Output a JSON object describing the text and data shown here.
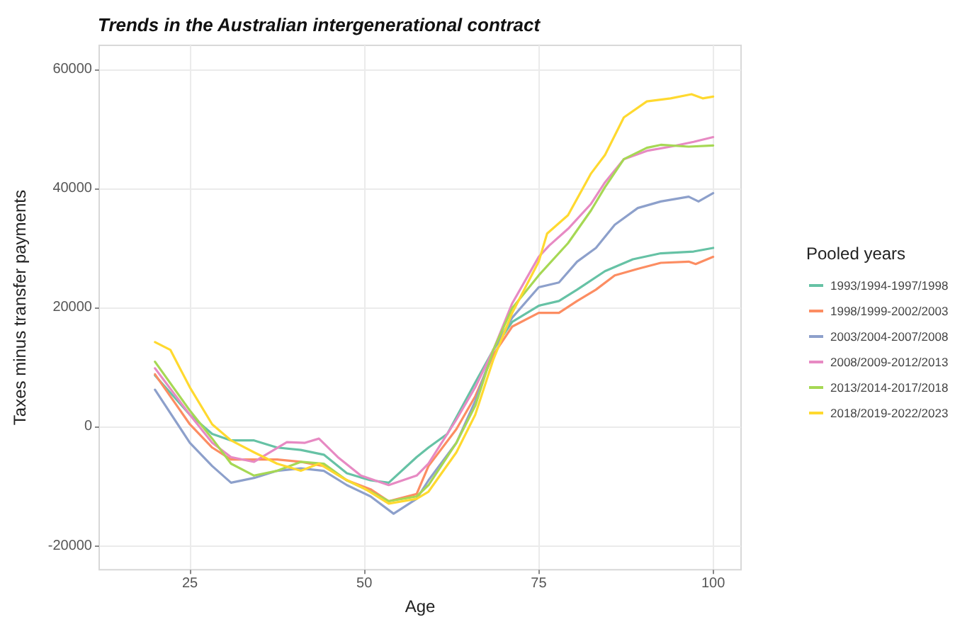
{
  "chart_data": {
    "type": "line",
    "title": "Trends in the Australian intergenerational contract",
    "xlabel": "Age",
    "ylabel": "Taxes minus transfer payments",
    "legend_title": "Pooled years",
    "xlim": [
      12,
      104
    ],
    "xticks": [
      25,
      50,
      75,
      100
    ],
    "ylim": [
      -24000,
      64000
    ],
    "yticks": [
      -20000,
      0,
      20000,
      40000,
      60000
    ],
    "grid": true,
    "legend": "right",
    "marker": "none",
    "line_style": "solid",
    "series": [
      {
        "name": "1993/1994-1997/1998",
        "color": "#66c2a5",
        "x": [
          20,
          25,
          28.2,
          30.9,
          34.2,
          37.5,
          40.9,
          44.2,
          47.5,
          50.9,
          53.5,
          57.5,
          59.2,
          61.9,
          65.9,
          68.5,
          71.2,
          75,
          77.9,
          80.5,
          84.5,
          88.5,
          92.5,
          97.2,
          100
        ],
        "values": [
          8600,
          2000,
          -1200,
          -2300,
          -2300,
          -3500,
          -3900,
          -4700,
          -7800,
          -9000,
          -9400,
          -5100,
          -3500,
          -1200,
          7400,
          12900,
          17600,
          20300,
          21100,
          23000,
          26100,
          28100,
          29100,
          29400,
          30000
        ]
      },
      {
        "name": "1998/1999-2002/2003",
        "color": "#fc8d62",
        "x": [
          20,
          25,
          28.2,
          30.9,
          34.2,
          37.5,
          40.9,
          44.2,
          47.5,
          50.9,
          53.5,
          57.5,
          59.2,
          63.2,
          65.9,
          68.5,
          71.2,
          75,
          77.9,
          80.5,
          83.2,
          85.9,
          89.2,
          92.5,
          96.5,
          97.5,
          100
        ],
        "values": [
          8800,
          400,
          -3500,
          -5500,
          -5500,
          -5500,
          -5900,
          -6600,
          -9000,
          -10500,
          -12500,
          -11300,
          -6600,
          -400,
          5100,
          12100,
          16800,
          19100,
          19100,
          21100,
          23000,
          25400,
          26500,
          27500,
          27700,
          27300,
          28500
        ]
      },
      {
        "name": "2003/2004-2007/2008",
        "color": "#8da0cb",
        "x": [
          20,
          25,
          28.2,
          30.9,
          34.2,
          37.5,
          40.9,
          44.2,
          47.5,
          50.9,
          54.2,
          57.5,
          59.2,
          63.2,
          65.9,
          68.5,
          71.2,
          75,
          77.9,
          80.5,
          83.2,
          85.9,
          89.2,
          92.5,
          96.5,
          97.9,
          100
        ],
        "values": [
          6200,
          -2700,
          -6600,
          -9400,
          -8600,
          -7400,
          -7000,
          -7400,
          -9800,
          -11700,
          -14600,
          -12100,
          -9000,
          -2700,
          4300,
          12900,
          18300,
          23400,
          24200,
          27700,
          30000,
          33900,
          36700,
          37800,
          38600,
          37800,
          39200
        ]
      },
      {
        "name": "2008/2009-2012/2013",
        "color": "#e78ac3",
        "x": [
          20,
          25,
          28.2,
          30.9,
          34.2,
          38.9,
          41.5,
          43.5,
          46.2,
          49.5,
          53.5,
          57.5,
          59.2,
          63.2,
          65.9,
          68.5,
          71.2,
          75,
          76.5,
          79.2,
          82.5,
          84.5,
          87.2,
          90.5,
          93.9,
          97.2,
          100
        ],
        "values": [
          9800,
          2000,
          -2700,
          -5100,
          -5900,
          -2600,
          -2700,
          -2000,
          -5100,
          -8200,
          -9800,
          -8200,
          -6200,
          1200,
          6600,
          12900,
          20700,
          28500,
          30400,
          33200,
          37400,
          41000,
          44900,
          46300,
          47000,
          47800,
          48600
        ]
      },
      {
        "name": "2013/2014-2017/2018",
        "color": "#a6d854",
        "x": [
          20,
          25,
          28.2,
          30.9,
          34.2,
          37.5,
          40.9,
          44.2,
          47.5,
          50.9,
          53.5,
          57.5,
          59.2,
          63.2,
          65.9,
          68.5,
          71.2,
          75,
          79.2,
          82.5,
          84.5,
          87.2,
          90.5,
          92.5,
          96.5,
          100
        ],
        "values": [
          10900,
          2700,
          -2000,
          -6200,
          -8200,
          -7400,
          -5900,
          -6200,
          -9000,
          -10900,
          -12500,
          -11700,
          -9800,
          -2700,
          3500,
          12900,
          19900,
          25400,
          30800,
          36300,
          40200,
          44900,
          46800,
          47300,
          47000,
          47200
        ]
      },
      {
        "name": "2018/2019-2022/2023",
        "color": "#ffd92f",
        "x": [
          20,
          22.2,
          25,
          28.2,
          30.9,
          34.2,
          37.5,
          40.9,
          43.5,
          46.9,
          50.2,
          53.5,
          57.5,
          59.2,
          63.2,
          65.9,
          68.5,
          71.2,
          75,
          76.2,
          79.2,
          82.5,
          84.5,
          87.2,
          90.5,
          93.9,
          96.9,
          98.5,
          100
        ],
        "values": [
          14200,
          12900,
          6600,
          400,
          -2300,
          -4300,
          -6200,
          -7400,
          -6200,
          -8600,
          -10500,
          -12900,
          -12100,
          -10900,
          -4300,
          2000,
          11300,
          19100,
          27700,
          32400,
          35500,
          42500,
          45600,
          51900,
          54600,
          55100,
          55800,
          55100,
          55400
        ]
      }
    ]
  }
}
